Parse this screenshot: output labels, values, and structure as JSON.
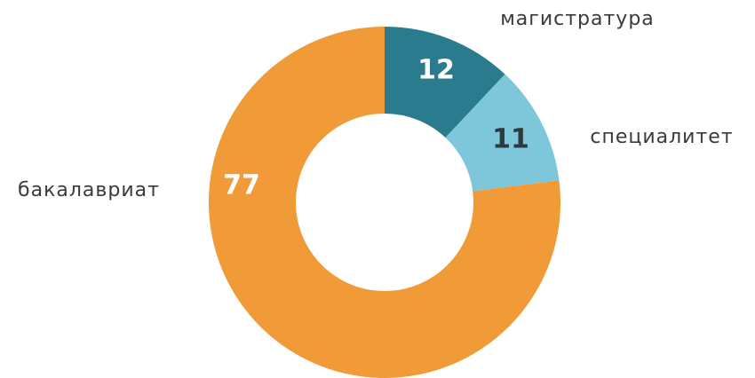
{
  "chart_data": {
    "type": "pie",
    "categories": [
      "магистратура",
      "специалитет",
      "бакалавриат"
    ],
    "values": [
      12,
      11,
      77
    ],
    "colors": [
      "#2b7b8f",
      "#7ec6da",
      "#f09a38"
    ]
  }
}
